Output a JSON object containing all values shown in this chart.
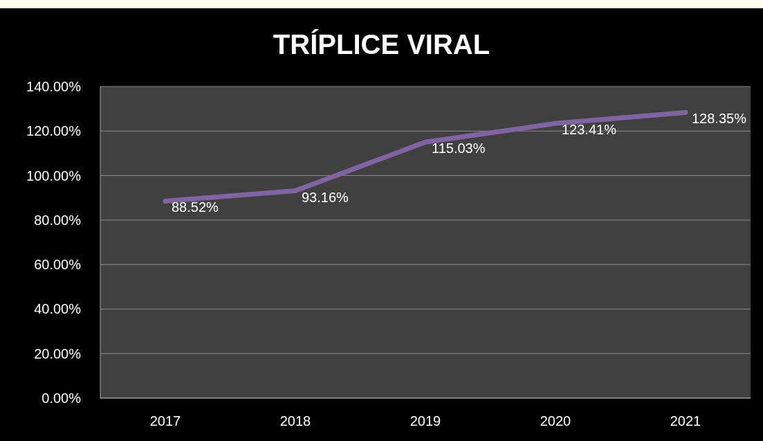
{
  "chart_data": {
    "type": "line",
    "title": "TRÍPLICE VIRAL",
    "categories": [
      "2017",
      "2018",
      "2019",
      "2020",
      "2021"
    ],
    "series": [
      {
        "color": "#8064a2",
        "values": [
          88.52,
          93.16,
          115.03,
          123.41,
          128.35
        ],
        "value_labels": [
          "88.52%",
          "93.16%",
          "115.03%",
          "123.41%",
          "128.35%"
        ]
      }
    ],
    "ylim": [
      0,
      140
    ],
    "yticks": [
      {
        "value": 0,
        "label": "0.00%"
      },
      {
        "value": 20,
        "label": "20.00%"
      },
      {
        "value": 40,
        "label": "40.00%"
      },
      {
        "value": 60,
        "label": "60.00%"
      },
      {
        "value": 80,
        "label": "80.00%"
      },
      {
        "value": 100,
        "label": "100.00%"
      },
      {
        "value": 120,
        "label": "120.00%"
      },
      {
        "value": 140,
        "label": "140.00%"
      }
    ],
    "grid": "y",
    "marker": "none",
    "line_style": "solid"
  }
}
